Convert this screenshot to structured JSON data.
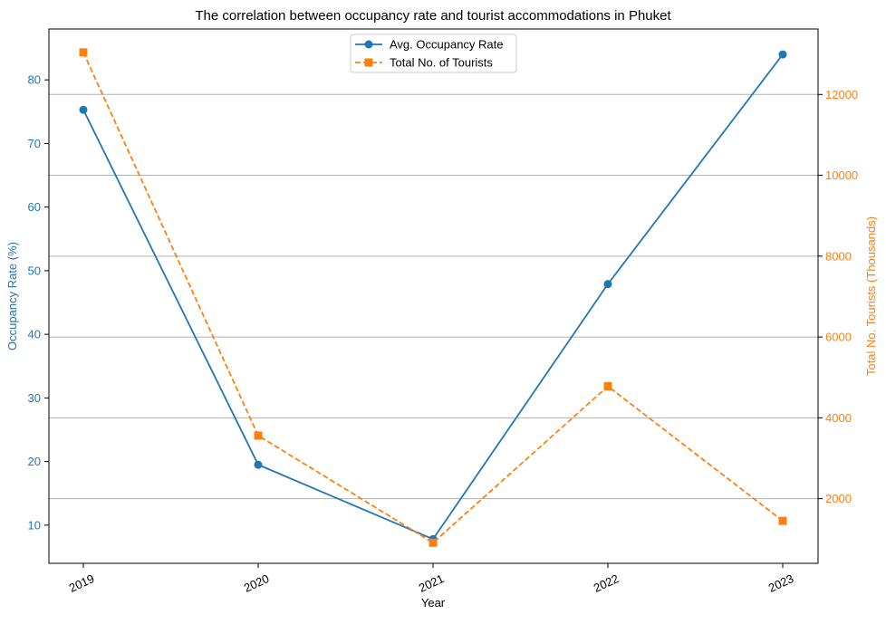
{
  "chart_data": {
    "type": "line",
    "title": "The correlation between occupancy rate and tourist accommodations in Phuket",
    "xlabel": "Year",
    "ylabel_left": "Occupancy Rate (%)",
    "ylabel_right": "Total No. Tourists (Thousands)",
    "categories": [
      "2019",
      "2020",
      "2021",
      "2022",
      "2023"
    ],
    "y_left_ticks": [
      10,
      20,
      30,
      40,
      50,
      60,
      70,
      80
    ],
    "y_left_range": [
      4.0,
      88.0
    ],
    "y_right_ticks": [
      2000,
      4000,
      6000,
      8000,
      10000,
      12000
    ],
    "y_right_range": [
      400,
      13620
    ],
    "grid": "horizontal, right axis",
    "legend_position": "top-center",
    "series": [
      {
        "name": "Avg. Occupancy Rate",
        "axis": "left",
        "color": "#1f77b4",
        "marker": "circle",
        "linestyle": "solid",
        "values": [
          75.3,
          19.5,
          7.8,
          47.9,
          84.0
        ]
      },
      {
        "name": "Total No. of Tourists",
        "axis": "right",
        "color": "#ff7f0e",
        "marker": "square",
        "linestyle": "dashed",
        "values": [
          13040,
          3560,
          910,
          4780,
          1450
        ]
      }
    ]
  }
}
